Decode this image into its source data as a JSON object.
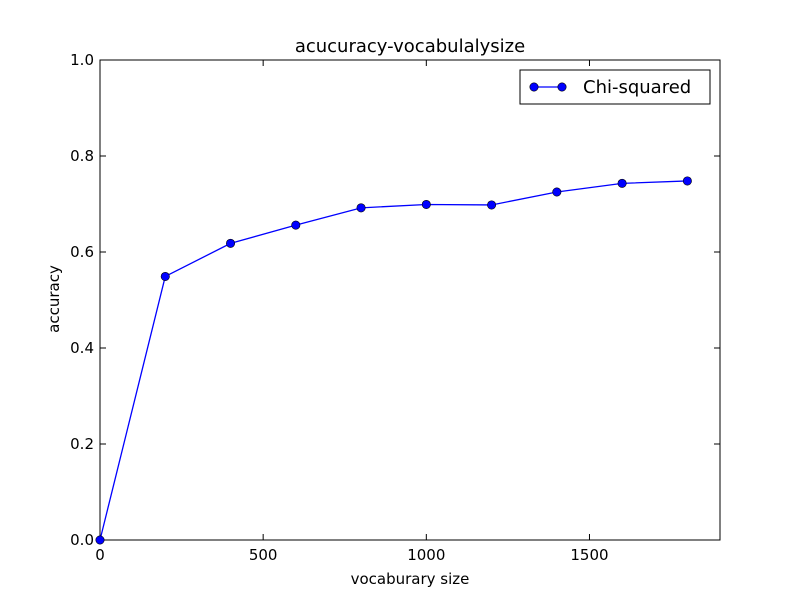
{
  "chart_data": {
    "type": "line",
    "title": "acucuracy-vocabulalysize",
    "xlabel": "vocaburary size",
    "ylabel": "accuracy",
    "xlim": [
      0,
      1900
    ],
    "ylim": [
      0.0,
      1.0
    ],
    "xticks": [
      0,
      500,
      1000,
      1500
    ],
    "xtick_labels": [
      "0",
      "500",
      "1000",
      "1500"
    ],
    "yticks": [
      0.0,
      0.2,
      0.4,
      0.6,
      0.8,
      1.0
    ],
    "ytick_labels": [
      "0.0",
      "0.2",
      "0.4",
      "0.6",
      "0.8",
      "1.0"
    ],
    "grid": false,
    "legend_position": "top-right",
    "series": [
      {
        "name": "Chi-squared",
        "color": "#0000ff",
        "marker": "circle",
        "x": [
          0,
          200,
          400,
          600,
          800,
          1000,
          1200,
          1400,
          1600,
          1800
        ],
        "y": [
          0.0,
          0.549,
          0.618,
          0.656,
          0.692,
          0.699,
          0.698,
          0.725,
          0.743,
          0.748
        ]
      }
    ]
  }
}
